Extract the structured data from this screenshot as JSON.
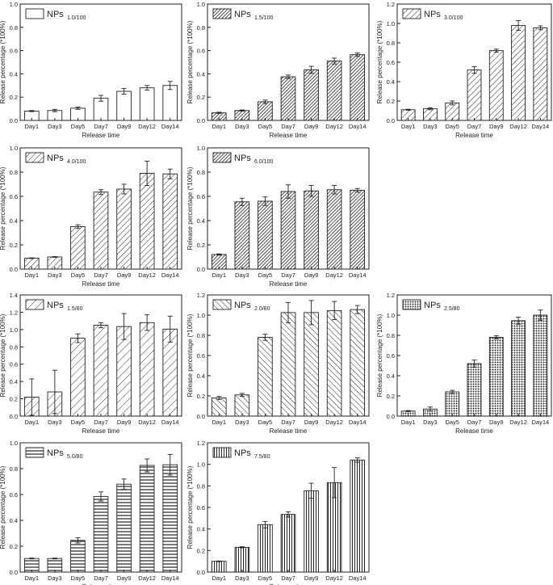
{
  "figure": {
    "description_hidden": ""
  },
  "chart_data": [
    {
      "type": "bar",
      "pattern": "empty",
      "legend": {
        "label": "NPs",
        "subscript": "1.0/100",
        "placement": "top-left"
      },
      "categories": [
        "Day1",
        "Day3",
        "Day5",
        "Day7",
        "Day9",
        "Day12",
        "Day14"
      ],
      "values": [
        0.08,
        0.085,
        0.105,
        0.19,
        0.25,
        0.28,
        0.3
      ],
      "errors": [
        0.005,
        0.01,
        0.01,
        0.025,
        0.025,
        0.02,
        0.035
      ],
      "xlabel": "Release time",
      "ylabel": "Release percentage (*100%)",
      "ylim": [
        0,
        1.0
      ],
      "yticks": [
        "0.0",
        "0.2",
        "0.4",
        "0.6",
        "0.8",
        "1.0"
      ],
      "ytick_values": [
        0,
        0.2,
        0.4,
        0.6,
        0.8,
        1.0
      ]
    },
    {
      "type": "bar",
      "pattern": "dense-diagonal",
      "legend": {
        "label": "NPs",
        "subscript": "1.5/100",
        "placement": "top-left"
      },
      "categories": [
        "Day1",
        "Day3",
        "Day5",
        "Day7",
        "Day9",
        "Day12",
        "Day14"
      ],
      "values": [
        0.065,
        0.085,
        0.16,
        0.375,
        0.435,
        0.51,
        0.565
      ],
      "errors": [
        0.005,
        0.005,
        0.015,
        0.015,
        0.03,
        0.025,
        0.015
      ],
      "xlabel": "Release time",
      "ylabel": "Release percentage (*100%)",
      "ylim": [
        0,
        1.0
      ],
      "yticks": [
        "0.0",
        "0.2",
        "0.4",
        "0.6",
        "0.8",
        "1.0"
      ],
      "ytick_values": [
        0,
        0.2,
        0.4,
        0.6,
        0.8,
        1.0
      ]
    },
    {
      "type": "bar",
      "pattern": "diagonal",
      "legend": {
        "label": "NPs",
        "subscript": "3.0/100",
        "placement": "top-left"
      },
      "categories": [
        "Day1",
        "Day3",
        "Day5",
        "Day7",
        "Day9",
        "Day12",
        "Day14"
      ],
      "values": [
        0.11,
        0.12,
        0.18,
        0.52,
        0.72,
        0.98,
        0.955
      ],
      "errors": [
        0.005,
        0.01,
        0.02,
        0.035,
        0.015,
        0.05,
        0.02
      ],
      "xlabel": "Release time",
      "ylabel": "Release percentage (*100%)",
      "ylim": [
        0,
        1.2
      ],
      "yticks": [
        "0.0",
        "0.2",
        "0.4",
        "0.6",
        "0.8",
        "1.0",
        "1.2"
      ],
      "ytick_values": [
        0,
        0.2,
        0.4,
        0.6,
        0.8,
        1.0,
        1.2
      ]
    },
    {
      "type": "bar",
      "pattern": "diagonal",
      "legend": {
        "label": "NPs",
        "subscript": "4.0/100",
        "placement": "top-left"
      },
      "categories": [
        "Day1",
        "Day3",
        "Day5",
        "Day7",
        "Day9",
        "Day12",
        "Day14"
      ],
      "values": [
        0.09,
        0.1,
        0.35,
        0.635,
        0.66,
        0.79,
        0.785
      ],
      "errors": [
        0.003,
        0.003,
        0.015,
        0.02,
        0.04,
        0.1,
        0.04
      ],
      "xlabel": "Release time",
      "ylabel": "Release percentage (*100%)",
      "ylim": [
        0,
        1.0
      ],
      "yticks": [
        "0.0",
        "0.2",
        "0.4",
        "0.6",
        "0.8",
        "1.0"
      ],
      "ytick_values": [
        0,
        0.2,
        0.4,
        0.6,
        0.8,
        1.0
      ]
    },
    {
      "type": "bar",
      "pattern": "dense-diagonal",
      "legend": {
        "label": "NPs",
        "subscript": "6.0/100",
        "placement": "top-left"
      },
      "categories": [
        "Day1",
        "Day3",
        "Day5",
        "Day7",
        "Day9",
        "Day12",
        "Day14"
      ],
      "values": [
        0.12,
        0.555,
        0.56,
        0.64,
        0.645,
        0.655,
        0.65
      ],
      "errors": [
        0.005,
        0.03,
        0.035,
        0.055,
        0.045,
        0.035,
        0.015
      ],
      "xlabel": "Release time",
      "ylabel": "Release percentage (*100%)",
      "ylim": [
        0,
        1.0
      ],
      "yticks": [
        "0.0",
        "0.2",
        "0.4",
        "0.6",
        "0.8",
        "1.0"
      ],
      "ytick_values": [
        0,
        0.2,
        0.4,
        0.6,
        0.8,
        1.0
      ]
    },
    {
      "type": "bar",
      "pattern": "diagonal-wide",
      "legend": {
        "label": "NPs",
        "subscript": "1.5/80",
        "placement": "top-left"
      },
      "categories": [
        "Day1",
        "Day3",
        "Day5",
        "Day7",
        "Day9",
        "Day12",
        "Day14"
      ],
      "values": [
        0.22,
        0.28,
        0.9,
        1.05,
        1.035,
        1.08,
        1.005
      ],
      "errors": [
        0.21,
        0.25,
        0.05,
        0.03,
        0.15,
        0.09,
        0.15
      ],
      "xlabel": "Release time",
      "ylabel": "Release percentage (*100%)",
      "ylim": [
        0,
        1.4
      ],
      "yticks": [
        "0.0",
        "0.2",
        "0.4",
        "0.6",
        "0.8",
        "1.0",
        "1.2",
        "1.4"
      ],
      "ytick_values": [
        0,
        0.2,
        0.4,
        0.6,
        0.8,
        1.0,
        1.2,
        1.4
      ]
    },
    {
      "type": "bar",
      "pattern": "back-diagonal",
      "legend": {
        "label": "NPs",
        "subscript": "2.0/80",
        "placement": "top-left"
      },
      "categories": [
        "Day1",
        "Day3",
        "Day5",
        "Day7",
        "Day9",
        "Day12",
        "Day14"
      ],
      "values": [
        0.18,
        0.21,
        0.78,
        1.025,
        1.025,
        1.045,
        1.055
      ],
      "errors": [
        0.015,
        0.015,
        0.03,
        0.1,
        0.12,
        0.09,
        0.04
      ],
      "xlabel": "Release time",
      "ylabel": "Release percentage (*100%)",
      "ylim": [
        0,
        1.2
      ],
      "yticks": [
        "0.0",
        "0.2",
        "0.4",
        "0.6",
        "0.8",
        "1.0",
        "1.2"
      ],
      "ytick_values": [
        0,
        0.2,
        0.4,
        0.6,
        0.8,
        1.0,
        1.2
      ]
    },
    {
      "type": "bar",
      "pattern": "dots",
      "legend": {
        "label": "NPs",
        "subscript": "2.5/80",
        "placement": "top-left"
      },
      "categories": [
        "Day1",
        "Day3",
        "Day5",
        "Day7",
        "Day9",
        "Day12",
        "Day14"
      ],
      "values": [
        0.05,
        0.07,
        0.24,
        0.52,
        0.78,
        0.945,
        1.0
      ],
      "errors": [
        0.005,
        0.02,
        0.015,
        0.035,
        0.015,
        0.035,
        0.05
      ],
      "xlabel": "Release time",
      "ylabel": "Release percentage (*100%)",
      "ylim": [
        0,
        1.2
      ],
      "yticks": [
        "0.0",
        "0.2",
        "0.4",
        "0.6",
        "0.8",
        "1.0",
        "1.2"
      ],
      "ytick_values": [
        0,
        0.2,
        0.4,
        0.6,
        0.8,
        1.0,
        1.2
      ]
    },
    {
      "type": "bar",
      "pattern": "horizontal",
      "legend": {
        "label": "NPs",
        "subscript": "5.0/80",
        "placement": "top-left"
      },
      "categories": [
        "Day1",
        "Day3",
        "Day5",
        "Day7",
        "Day9",
        "Day12",
        "Day14"
      ],
      "values": [
        0.105,
        0.105,
        0.245,
        0.585,
        0.68,
        0.825,
        0.83
      ],
      "errors": [
        0.003,
        0.003,
        0.02,
        0.035,
        0.04,
        0.05,
        0.08
      ],
      "xlabel": "Release time",
      "ylabel": "Release percentage (*100%)",
      "ylim": [
        0,
        1.0
      ],
      "yticks": [
        "0.0",
        "0.2",
        "0.4",
        "0.6",
        "0.8",
        "1.0"
      ],
      "ytick_values": [
        0,
        0.2,
        0.4,
        0.6,
        0.8,
        1.0
      ]
    },
    {
      "type": "bar",
      "pattern": "vertical",
      "legend": {
        "label": "NPs",
        "subscript": "7.5/80",
        "placement": "top-left"
      },
      "categories": [
        "Day1",
        "Day3",
        "Day5",
        "Day7",
        "Day9",
        "Day12",
        "Day14"
      ],
      "values": [
        0.1,
        0.23,
        0.44,
        0.535,
        0.755,
        0.83,
        1.04
      ],
      "errors": [
        0.003,
        0.005,
        0.03,
        0.025,
        0.07,
        0.14,
        0.02
      ],
      "xlabel": "Release time",
      "ylabel": "Release percentage (*100%)",
      "ylim": [
        0,
        1.2
      ],
      "yticks": [
        "0.0",
        "0.2",
        "0.4",
        "0.6",
        "0.8",
        "1.0",
        "1.2"
      ],
      "ytick_values": [
        0,
        0.2,
        0.4,
        0.6,
        0.8,
        1.0,
        1.2
      ]
    }
  ]
}
